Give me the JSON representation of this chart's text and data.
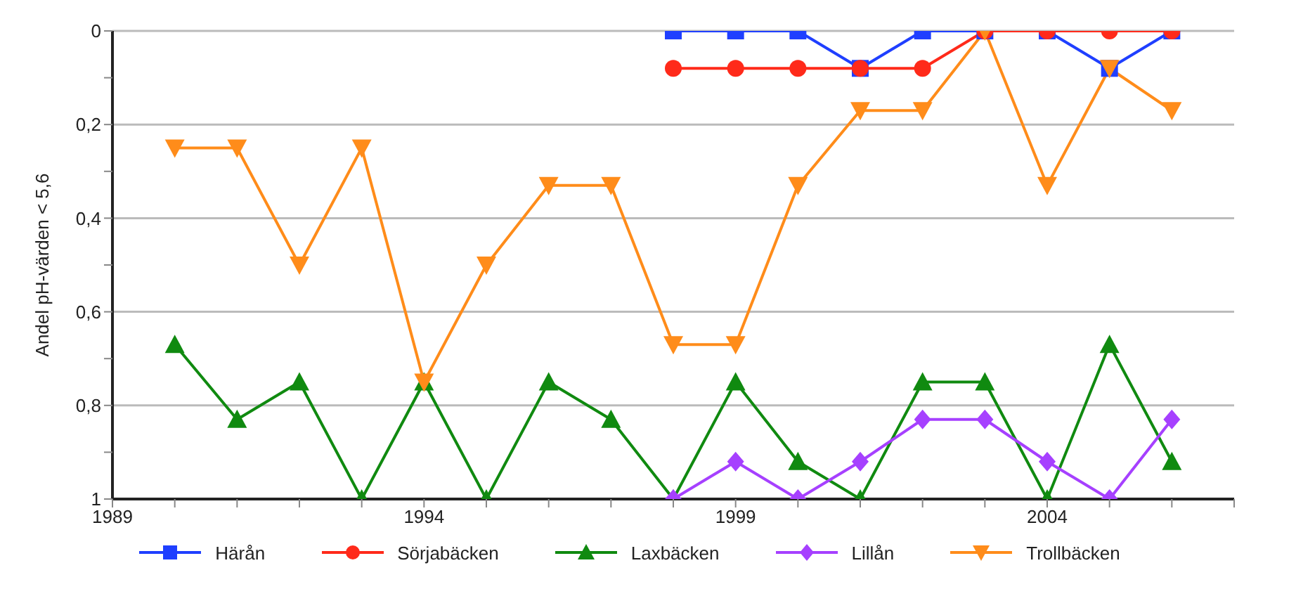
{
  "chart_data": {
    "type": "line",
    "ylabel": "Andel pH-värden < 5,6",
    "xlim": [
      1989,
      2007
    ],
    "xticks": [
      1989,
      {
        "value": 1990,
        "label": null
      },
      {
        "value": 1991,
        "label": null
      },
      {
        "value": 1992,
        "label": null
      },
      {
        "value": 1993,
        "label": null
      },
      1994,
      {
        "value": 1995,
        "label": null
      },
      {
        "value": 1996,
        "label": null
      },
      {
        "value": 1997,
        "label": null
      },
      {
        "value": 1998,
        "label": null
      },
      1999,
      {
        "value": 2000,
        "label": null
      },
      {
        "value": 2001,
        "label": null
      },
      {
        "value": 2002,
        "label": null
      },
      {
        "value": 2003,
        "label": null
      },
      2004,
      {
        "value": 2005,
        "label": null
      },
      {
        "value": 2006,
        "label": null
      },
      {
        "value": 2007,
        "label": null
      }
    ],
    "ylim": [
      1,
      0
    ],
    "yticks": [
      {
        "value": 0,
        "label": "0"
      },
      {
        "value": 0.1,
        "label": null
      },
      {
        "value": 0.2,
        "label": "0,2"
      },
      {
        "value": 0.3,
        "label": null
      },
      {
        "value": 0.4,
        "label": "0,4"
      },
      {
        "value": 0.5,
        "label": null
      },
      {
        "value": 0.6,
        "label": "0,6"
      },
      {
        "value": 0.7,
        "label": null
      },
      {
        "value": 0.8,
        "label": "0,8"
      },
      {
        "value": 0.9,
        "label": null
      },
      {
        "value": 1,
        "label": "1"
      }
    ],
    "grid": "y",
    "legend": "bottom",
    "line_style": "solid",
    "series": [
      {
        "name": "Härån",
        "color": "#1f3fff",
        "marker": "square",
        "x": [
          1998,
          1999,
          2000,
          2001,
          2002,
          2003,
          2004,
          2005,
          2006
        ],
        "values": [
          0,
          0,
          0,
          0.08,
          0,
          0,
          0,
          0.08,
          0
        ]
      },
      {
        "name": "Sörjabäcken",
        "color": "#ff2a1a",
        "marker": "circle",
        "x": [
          1998,
          1999,
          2000,
          2001,
          2002,
          2003,
          2004,
          2005,
          2006
        ],
        "values": [
          0.08,
          0.08,
          0.08,
          0.08,
          0.08,
          0,
          0,
          0,
          0
        ]
      },
      {
        "name": "Laxbäcken",
        "color": "#108a10",
        "marker": "triangle",
        "x": [
          1990,
          1991,
          1992,
          1993,
          1994,
          1995,
          1996,
          1997,
          1998,
          1999,
          2000,
          2001,
          2002,
          2003,
          2004,
          2005,
          2006
        ],
        "values": [
          0.67,
          0.83,
          0.75,
          1,
          0.75,
          1,
          0.75,
          0.83,
          1,
          0.75,
          0.92,
          1,
          0.75,
          0.75,
          1,
          0.67,
          0.92
        ]
      },
      {
        "name": "Lillån",
        "color": "#a640ff",
        "marker": "diamond",
        "x": [
          1998,
          1999,
          2000,
          2001,
          2002,
          2003,
          2004,
          2005,
          2006
        ],
        "values": [
          1,
          0.92,
          1,
          0.92,
          0.83,
          0.83,
          0.92,
          1,
          0.83
        ]
      },
      {
        "name": "Trollbäcken",
        "color": "#ff8c1a",
        "marker": "triangle-down",
        "x": [
          1990,
          1991,
          1992,
          1993,
          1994,
          1995,
          1996,
          1997,
          1998,
          1999,
          2000,
          2001,
          2002,
          2003,
          2004,
          2005,
          2006
        ],
        "values": [
          0.25,
          0.25,
          0.5,
          0.25,
          0.75,
          0.5,
          0.33,
          0.33,
          0.67,
          0.67,
          0.33,
          0.17,
          0.17,
          0,
          0.33,
          0.08,
          0.17
        ]
      }
    ]
  }
}
